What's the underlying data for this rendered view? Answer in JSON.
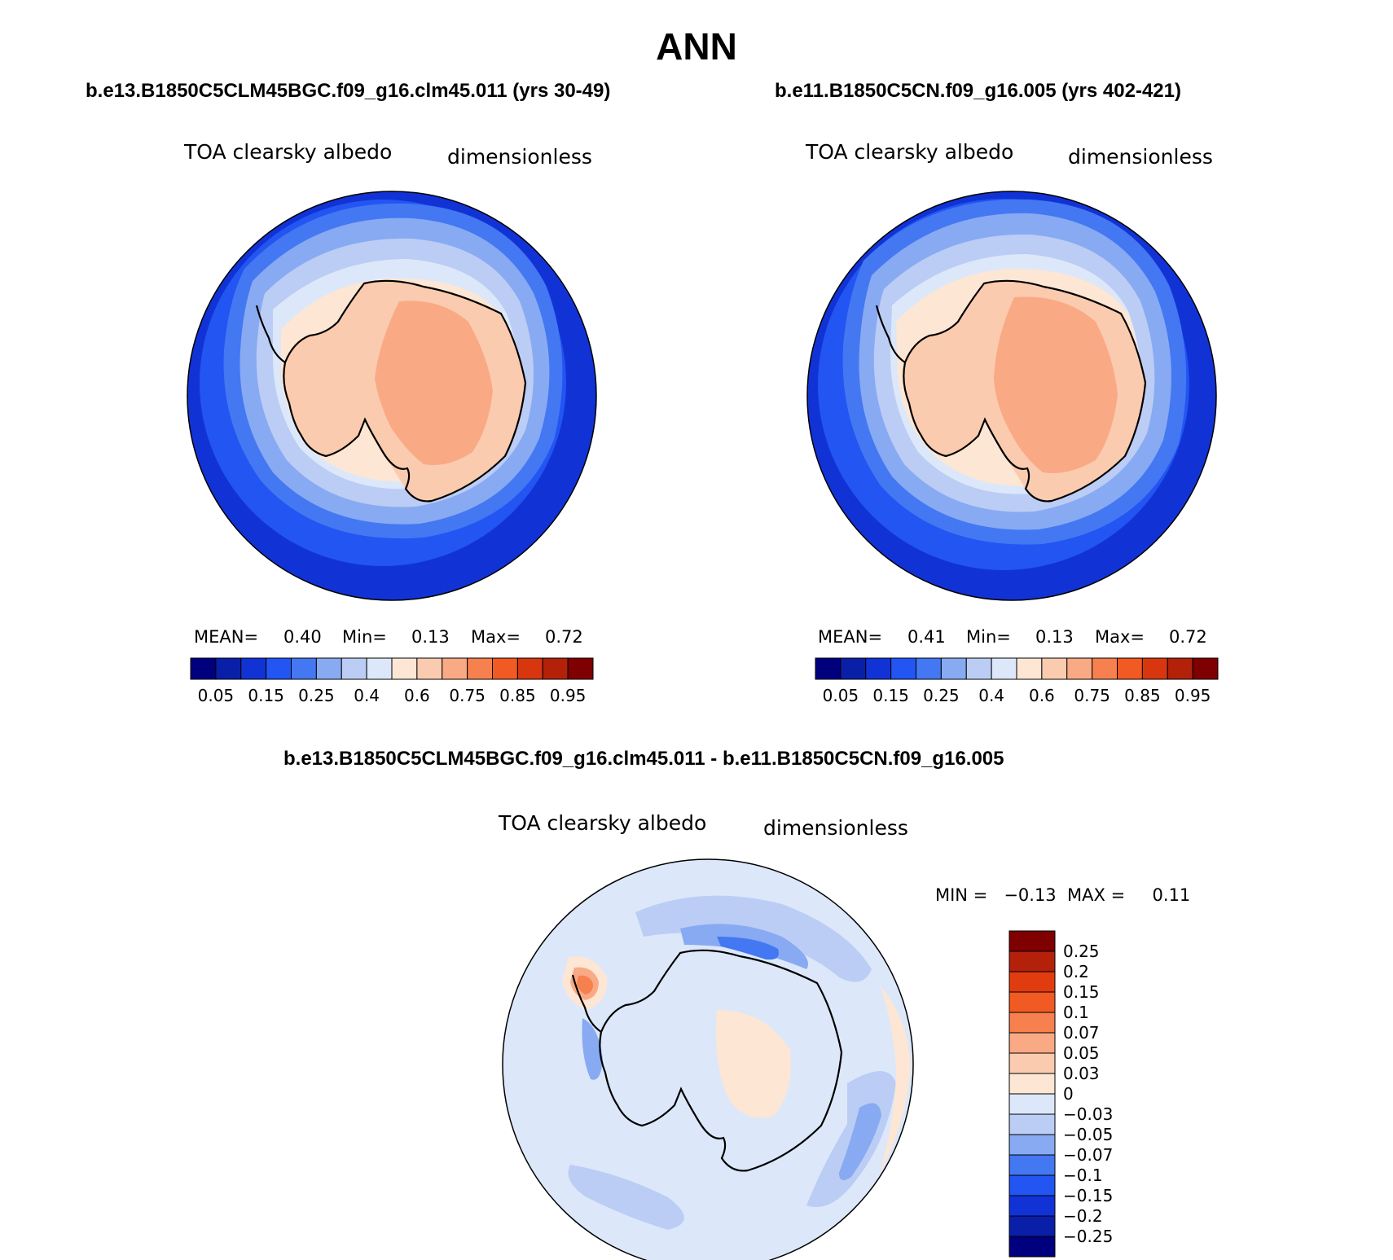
{
  "figure": {
    "title": "ANN"
  },
  "panels": {
    "left": {
      "case_title": "b.e13.B1850C5CLM45BGC.f09_g16.clm45.011 (yrs 30-49)",
      "variable": "TOA clearsky albedo",
      "units": "dimensionless",
      "mean_label": "MEAN=",
      "mean_value": "0.40",
      "min_label": "Min=",
      "min_value": "0.13",
      "max_label": "Max=",
      "max_value": "0.72"
    },
    "right": {
      "case_title": "b.e11.B1850C5CN.f09_g16.005 (yrs 402-421)",
      "variable": "TOA clearsky albedo",
      "units": "dimensionless",
      "mean_label": "MEAN=",
      "mean_value": "0.41",
      "min_label": "Min=",
      "min_value": "0.13",
      "max_label": "Max=",
      "max_value": "0.72"
    },
    "diff": {
      "case_title": "b.e13.B1850C5CLM45BGC.f09_g16.clm45.011 - b.e11.B1850C5CN.f09_g16.005",
      "variable": "TOA clearsky albedo",
      "units": "dimensionless",
      "minmax_text": "MIN =   −0.13  MAX =     0.11"
    }
  },
  "colorbar_main": {
    "colors": [
      "#00007f",
      "#0a1fa8",
      "#1133d6",
      "#2255f2",
      "#4477f2",
      "#88aaf2",
      "#bbcdf5",
      "#dce8fa",
      "#fde6d3",
      "#fbcbb0",
      "#f9aa85",
      "#f6814f",
      "#f15a22",
      "#d8360f",
      "#b3210b",
      "#7f0000"
    ],
    "ticks": [
      "0.05",
      "0.15",
      "0.25",
      "0.4",
      "0.6",
      "0.75",
      "0.85",
      "0.95"
    ]
  },
  "colorbar_diff": {
    "colors": [
      "#7f0000",
      "#b3210b",
      "#e03c10",
      "#f15a22",
      "#f6814f",
      "#f9aa85",
      "#fbcbb0",
      "#fde6d3",
      "#dce8fa",
      "#bbcdf5",
      "#88aaf2",
      "#4477f2",
      "#2255f2",
      "#1133d6",
      "#0a1fa8",
      "#00007f"
    ],
    "ticks": [
      "0.25",
      "0.2",
      "0.15",
      "0.1",
      "0.07",
      "0.05",
      "0.03",
      "0",
      "−0.03",
      "−0.05",
      "−0.07",
      "−0.1",
      "−0.15",
      "−0.2",
      "−0.25"
    ]
  },
  "map_colors": {
    "ocean_deep": "#1133d6",
    "ocean_mid": "#2255f2",
    "ocean_light": "#4477f2",
    "ice_pale": "#88aaf2",
    "ice_paler": "#bbcdf5",
    "ice_edge": "#dce8fa",
    "coast": "#fde6d3",
    "land": "#fbcbb0",
    "plateau": "#f9aa85",
    "diff_base": "#dce8fa"
  }
}
